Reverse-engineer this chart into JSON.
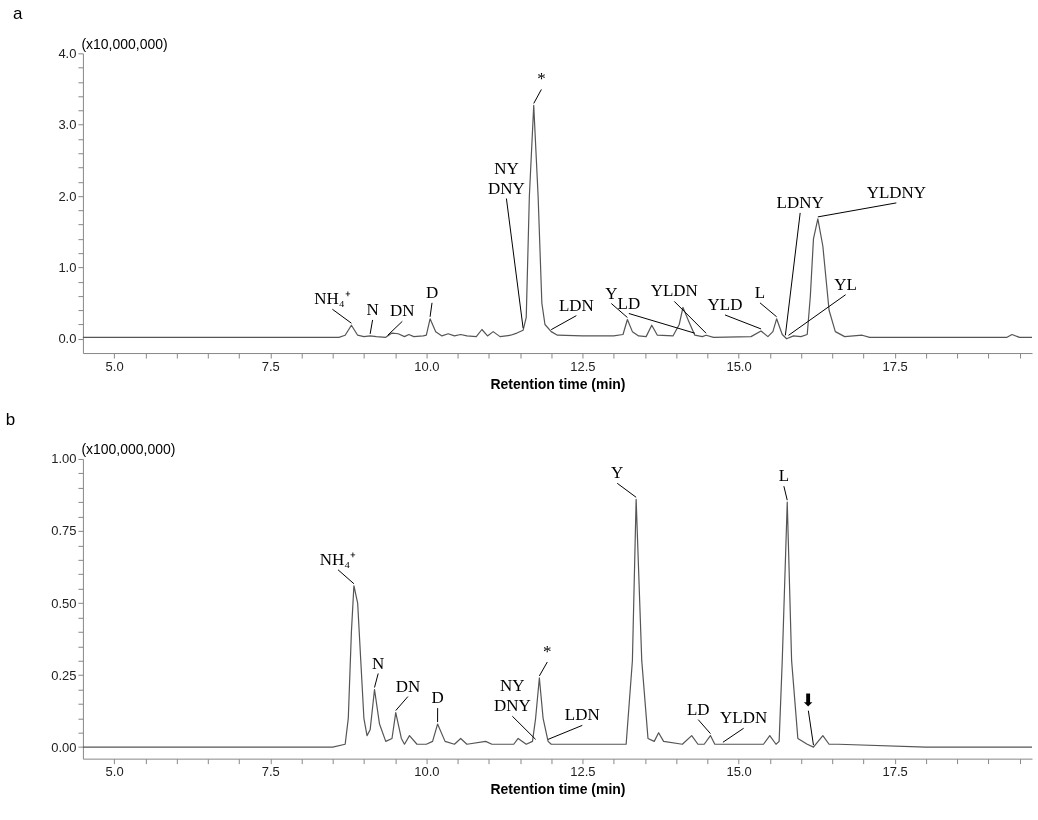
{
  "chart_data": [
    {
      "type": "line",
      "title": "a",
      "xlabel": "Retention time (min)",
      "ylabel": "(x10,000,000)",
      "xlim": [
        4.5,
        19.7
      ],
      "ylim": [
        -0.2,
        4.0
      ],
      "xticks": [
        {
          "value": 5,
          "label": "5.0"
        },
        {
          "value": 5.5,
          "label": null
        },
        {
          "value": 6,
          "label": null
        },
        {
          "value": 6.5,
          "label": null
        },
        {
          "value": 7,
          "label": null
        },
        {
          "value": 7.5,
          "label": "7.5"
        },
        {
          "value": 8,
          "label": null
        },
        {
          "value": 8.5,
          "label": null
        },
        {
          "value": 9,
          "label": null
        },
        {
          "value": 9.5,
          "label": null
        },
        {
          "value": 10,
          "label": "10.0"
        },
        {
          "value": 10.5,
          "label": null
        },
        {
          "value": 11,
          "label": null
        },
        {
          "value": 11.5,
          "label": null
        },
        {
          "value": 12,
          "label": null
        },
        {
          "value": 12.5,
          "label": "12.5"
        },
        {
          "value": 13,
          "label": null
        },
        {
          "value": 13.5,
          "label": null
        },
        {
          "value": 14,
          "label": null
        },
        {
          "value": 14.5,
          "label": null
        },
        {
          "value": 15,
          "label": "15.0"
        },
        {
          "value": 15.5,
          "label": null
        },
        {
          "value": 16,
          "label": null
        },
        {
          "value": 16.5,
          "label": null
        },
        {
          "value": 17,
          "label": null
        },
        {
          "value": 17.5,
          "label": "17.5"
        },
        {
          "value": 18,
          "label": null
        },
        {
          "value": 18.5,
          "label": null
        },
        {
          "value": 19,
          "label": null
        },
        {
          "value": 19.5,
          "label": null
        }
      ],
      "yticks": [
        {
          "value": 0,
          "label": "0.0"
        },
        {
          "value": 0.2,
          "label": null
        },
        {
          "value": 0.4,
          "label": null
        },
        {
          "value": 0.6,
          "label": null
        },
        {
          "value": 0.8,
          "label": null
        },
        {
          "value": 1,
          "label": "1.0"
        },
        {
          "value": 1.2,
          "label": null
        },
        {
          "value": 1.4,
          "label": null
        },
        {
          "value": 1.6,
          "label": null
        },
        {
          "value": 1.8,
          "label": null
        },
        {
          "value": 2,
          "label": "2.0"
        },
        {
          "value": 2.2,
          "label": null
        },
        {
          "value": 2.4,
          "label": null
        },
        {
          "value": 2.6,
          "label": null
        },
        {
          "value": 2.8,
          "label": null
        },
        {
          "value": 3,
          "label": "3.0"
        },
        {
          "value": 3.2,
          "label": null
        },
        {
          "value": 3.4,
          "label": null
        },
        {
          "value": 3.6,
          "label": null
        },
        {
          "value": 3.8,
          "label": null
        },
        {
          "value": 4,
          "label": "4.0"
        }
      ],
      "grid": false,
      "series": [
        {
          "color": "#555555",
          "x": [
            4.5,
            6.0,
            7.5,
            8.6,
            8.7,
            8.8,
            8.9,
            9.0,
            9.1,
            9.2,
            9.35,
            9.45,
            9.55,
            9.65,
            9.72,
            9.8,
            9.95,
            10.0,
            10.06,
            10.15,
            10.25,
            10.35,
            10.45,
            10.55,
            10.65,
            10.8,
            10.89,
            10.98,
            11.07,
            11.18,
            11.35,
            11.45,
            11.55,
            11.6,
            11.65,
            11.72,
            11.79,
            11.85,
            11.9,
            12.0,
            12.1,
            12.5,
            13.0,
            13.15,
            13.22,
            13.3,
            13.4,
            13.52,
            13.61,
            13.7,
            13.95,
            14.05,
            14.11,
            14.2,
            14.3,
            14.42,
            14.48,
            14.6,
            15.2,
            15.36,
            15.47,
            15.55,
            15.61,
            15.7,
            15.77,
            15.88,
            16.0,
            16.1,
            16.15,
            16.2,
            16.27,
            16.35,
            16.45,
            16.55,
            16.7,
            16.98,
            17.1,
            18.5,
            19.3,
            19.38,
            19.5,
            19.7
          ],
          "values": [
            0.02,
            0.02,
            0.02,
            0.02,
            0.05,
            0.19,
            0.05,
            0.03,
            0.04,
            0.03,
            0.02,
            0.08,
            0.07,
            0.03,
            0.06,
            0.03,
            0.04,
            0.05,
            0.28,
            0.1,
            0.04,
            0.07,
            0.04,
            0.06,
            0.04,
            0.03,
            0.13,
            0.04,
            0.1,
            0.03,
            0.05,
            0.08,
            0.12,
            0.3,
            2.0,
            3.27,
            2.0,
            0.5,
            0.2,
            0.1,
            0.05,
            0.04,
            0.04,
            0.06,
            0.27,
            0.1,
            0.04,
            0.03,
            0.19,
            0.05,
            0.04,
            0.2,
            0.44,
            0.25,
            0.05,
            0.03,
            0.05,
            0.02,
            0.03,
            0.11,
            0.03,
            0.1,
            0.28,
            0.06,
            0.0,
            0.04,
            0.03,
            0.06,
            0.6,
            1.4,
            1.68,
            1.3,
            0.4,
            0.1,
            0.03,
            0.05,
            0.02,
            0.02,
            0.02,
            0.06,
            0.02,
            0.02
          ]
        }
      ],
      "annotations": [
        {
          "text": "NH₄⁺",
          "x": 8.8,
          "y": 0.19
        },
        {
          "text": "N",
          "x": 9.1,
          "y": 0.04
        },
        {
          "text": "DN",
          "x": 9.38,
          "y": 0.02
        },
        {
          "text": "D",
          "x": 10.06,
          "y": 0.28
        },
        {
          "text": "NY\nDNY",
          "x": 11.55,
          "y": 0.12
        },
        {
          "text": "*",
          "x": 11.72,
          "y": 3.27
        },
        {
          "text": "LDN",
          "x": 12.0,
          "y": 0.1
        },
        {
          "text": "Y",
          "x": 13.22,
          "y": 0.27
        },
        {
          "text": "LD",
          "x": 14.3,
          "y": 0.05
        },
        {
          "text": "YLDN",
          "x": 14.48,
          "y": 0.05
        },
        {
          "text": "YLD",
          "x": 15.36,
          "y": 0.11
        },
        {
          "text": "L",
          "x": 15.61,
          "y": 0.28
        },
        {
          "text": "LDNY",
          "x": 15.75,
          "y": 0.02
        },
        {
          "text": "YL",
          "x": 15.8,
          "y": 0.02
        },
        {
          "text": "YLDNY",
          "x": 16.27,
          "y": 1.68
        }
      ]
    },
    {
      "type": "line",
      "title": "b",
      "xlabel": "Retention time (min)",
      "ylabel": "(x100,000,000)",
      "xlim": [
        4.5,
        19.7
      ],
      "ylim": [
        -0.04,
        1.0
      ],
      "xticks": [
        {
          "value": 5,
          "label": "5.0"
        },
        {
          "value": 5.5,
          "label": null
        },
        {
          "value": 6,
          "label": null
        },
        {
          "value": 6.5,
          "label": null
        },
        {
          "value": 7,
          "label": null
        },
        {
          "value": 7.5,
          "label": "7.5"
        },
        {
          "value": 8,
          "label": null
        },
        {
          "value": 8.5,
          "label": null
        },
        {
          "value": 9,
          "label": null
        },
        {
          "value": 9.5,
          "label": null
        },
        {
          "value": 10,
          "label": "10.0"
        },
        {
          "value": 10.5,
          "label": null
        },
        {
          "value": 11,
          "label": null
        },
        {
          "value": 11.5,
          "label": null
        },
        {
          "value": 12,
          "label": null
        },
        {
          "value": 12.5,
          "label": "12.5"
        },
        {
          "value": 13,
          "label": null
        },
        {
          "value": 13.5,
          "label": null
        },
        {
          "value": 14,
          "label": null
        },
        {
          "value": 14.5,
          "label": null
        },
        {
          "value": 15,
          "label": "15.0"
        },
        {
          "value": 15.5,
          "label": null
        },
        {
          "value": 16,
          "label": null
        },
        {
          "value": 16.5,
          "label": null
        },
        {
          "value": 17,
          "label": null
        },
        {
          "value": 17.5,
          "label": "17.5"
        },
        {
          "value": 18,
          "label": null
        },
        {
          "value": 18.5,
          "label": null
        },
        {
          "value": 19,
          "label": null
        },
        {
          "value": 19.5,
          "label": null
        }
      ],
      "yticks": [
        {
          "value": 0,
          "label": "0.00"
        },
        {
          "value": 0.05,
          "label": null
        },
        {
          "value": 0.1,
          "label": null
        },
        {
          "value": 0.15,
          "label": null
        },
        {
          "value": 0.2,
          "label": null
        },
        {
          "value": 0.25,
          "label": "0.25"
        },
        {
          "value": 0.3,
          "label": null
        },
        {
          "value": 0.35,
          "label": null
        },
        {
          "value": 0.4,
          "label": null
        },
        {
          "value": 0.45,
          "label": null
        },
        {
          "value": 0.5,
          "label": "0.50"
        },
        {
          "value": 0.55,
          "label": null
        },
        {
          "value": 0.6,
          "label": null
        },
        {
          "value": 0.65,
          "label": null
        },
        {
          "value": 0.7,
          "label": null
        },
        {
          "value": 0.75,
          "label": "0.75"
        },
        {
          "value": 0.8,
          "label": null
        },
        {
          "value": 0.85,
          "label": null
        },
        {
          "value": 0.9,
          "label": null
        },
        {
          "value": 0.95,
          "label": null
        },
        {
          "value": 1,
          "label": "1.00"
        }
      ],
      "grid": false,
      "series": [
        {
          "color": "#555555",
          "x": [
            4.5,
            6.0,
            7.5,
            8.5,
            8.7,
            8.75,
            8.8,
            8.84,
            8.9,
            8.95,
            9.0,
            9.05,
            9.1,
            9.17,
            9.25,
            9.35,
            9.45,
            9.51,
            9.6,
            9.65,
            9.73,
            9.85,
            10.0,
            10.1,
            10.18,
            10.3,
            10.45,
            10.55,
            10.65,
            10.95,
            11.05,
            11.4,
            11.47,
            11.6,
            11.7,
            11.75,
            11.81,
            11.87,
            11.95,
            12.0,
            12.5,
            13.2,
            13.3,
            13.36,
            13.45,
            13.55,
            13.65,
            13.72,
            13.8,
            14.1,
            14.25,
            14.35,
            14.45,
            14.55,
            14.62,
            15.4,
            15.5,
            15.6,
            15.65,
            15.7,
            15.78,
            15.85,
            15.95,
            16.1,
            16.2,
            16.35,
            16.45,
            16.6,
            18.0,
            19.7
          ],
          "values": [
            0.0,
            0.0,
            0.0,
            0.0,
            0.01,
            0.1,
            0.4,
            0.56,
            0.5,
            0.3,
            0.1,
            0.04,
            0.06,
            0.2,
            0.08,
            0.02,
            0.03,
            0.12,
            0.03,
            0.01,
            0.04,
            0.01,
            0.01,
            0.02,
            0.08,
            0.02,
            0.01,
            0.03,
            0.01,
            0.02,
            0.01,
            0.01,
            0.03,
            0.01,
            0.02,
            0.1,
            0.24,
            0.1,
            0.02,
            0.01,
            0.01,
            0.01,
            0.3,
            0.86,
            0.3,
            0.03,
            0.02,
            0.05,
            0.02,
            0.01,
            0.04,
            0.01,
            0.01,
            0.04,
            0.01,
            0.01,
            0.04,
            0.01,
            0.02,
            0.3,
            0.85,
            0.3,
            0.03,
            0.01,
            0.0,
            0.04,
            0.01,
            0.01,
            0.0,
            0.0
          ]
        }
      ],
      "annotations": [
        {
          "text": "NH₄⁺",
          "x": 8.84,
          "y": 0.56
        },
        {
          "text": "N",
          "x": 9.17,
          "y": 0.2
        },
        {
          "text": "DN",
          "x": 9.51,
          "y": 0.12
        },
        {
          "text": "D",
          "x": 10.18,
          "y": 0.08
        },
        {
          "text": "NY\nDNY",
          "x": 11.75,
          "y": 0.02
        },
        {
          "text": "*",
          "x": 11.81,
          "y": 0.24
        },
        {
          "text": "LDN",
          "x": 11.95,
          "y": 0.02
        },
        {
          "text": "Y",
          "x": 13.36,
          "y": 0.86
        },
        {
          "text": "LD",
          "x": 14.55,
          "y": 0.04
        },
        {
          "text": "YLDN",
          "x": 14.75,
          "y": 0.01
        },
        {
          "text": "L",
          "x": 15.78,
          "y": 0.85
        },
        {
          "text": "⬇",
          "x": 16.2,
          "y": 0.0
        }
      ]
    }
  ]
}
